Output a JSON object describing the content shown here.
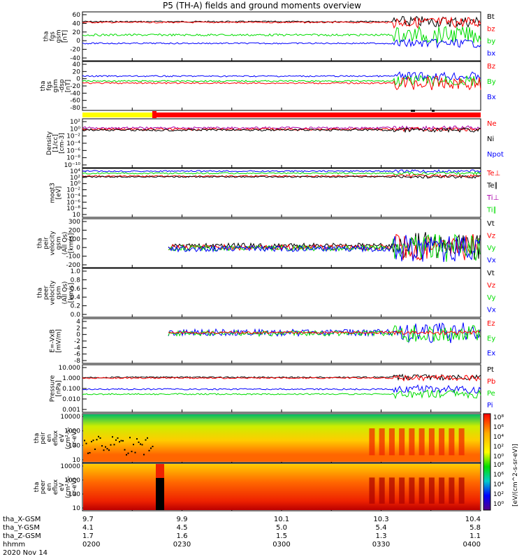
{
  "title": "P5 (TH-A) fields and ground moments overview",
  "date": "2020 Nov 14",
  "colors": {
    "black": "#000000",
    "red": "#ff0000",
    "green": "#00dd00",
    "blue": "#0000ff",
    "yellowbar": "#ffff00",
    "redbar": "#ff0000",
    "purple": "#aa00aa"
  },
  "panels": [
    {
      "ylabel": [
        "tha",
        "fgs",
        "gsm",
        "[nT]"
      ],
      "ticks": [
        "60",
        "40",
        "20",
        "0",
        "-20",
        "-40"
      ],
      "legend": [
        [
          "Bt",
          "black"
        ],
        [
          "bz",
          "red"
        ],
        [
          "by",
          "green"
        ],
        [
          "bx",
          "blue"
        ]
      ]
    },
    {
      "ylabel": [
        "tha",
        "fgs",
        "gsm",
        "-dsp",
        "[nT]"
      ],
      "ticks": [
        "40",
        "20",
        "0",
        "-20",
        "-40",
        "-60",
        "-80"
      ],
      "legend": [
        [
          "Bz",
          "red"
        ],
        [
          "By",
          "green"
        ],
        [
          "Bx",
          "blue"
        ]
      ]
    },
    {
      "ylabel": [
        "Density",
        "[1/cc]",
        "[cm-3]"
      ],
      "ticks": [
        "10²",
        "10⁰",
        "10⁻²",
        "10⁻⁴",
        "10⁻⁶",
        "10⁻⁸",
        "10⁻¹⁰"
      ],
      "legend": [
        [
          "Ne",
          "red"
        ],
        [
          "Ni",
          "black"
        ],
        [
          "Npot",
          "blue"
        ]
      ]
    },
    {
      "ylabel": [
        "moqt3",
        "[eV]"
      ],
      "ticks": [
        "10⁴",
        "10²",
        "10⁰",
        "10⁻²",
        "10⁻⁴",
        "10⁻⁶",
        "10⁻⁸",
        "10"
      ],
      "legend": [
        [
          "Te⊥",
          "red"
        ],
        [
          "Te∥",
          "black"
        ],
        [
          "Ti⊥",
          "purple"
        ],
        [
          "Ti∥",
          "green"
        ]
      ]
    },
    {
      "ylabel": [
        "tha",
        "peir",
        "velocity",
        "gsm",
        "(All Qs)",
        "[km/s]"
      ],
      "ticks": [
        "300",
        "200",
        "100",
        "0",
        "-100",
        "-200"
      ],
      "legend": [
        [
          "Vt",
          "black"
        ],
        [
          "Vz",
          "red"
        ],
        [
          "Vy",
          "green"
        ],
        [
          "Vx",
          "blue"
        ]
      ]
    },
    {
      "ylabel": [
        "tha",
        "peer",
        "velocity",
        "gsm",
        "(All Qs)",
        "[km/s]"
      ],
      "ticks": [
        "1.0",
        "0.8",
        "0.6",
        "0.4",
        "0.2",
        "0.0"
      ],
      "legend": [
        [
          "Vt",
          "black"
        ],
        [
          "Vz",
          "red"
        ],
        [
          "Vy",
          "green"
        ],
        [
          "Vx",
          "blue"
        ]
      ]
    },
    {
      "ylabel": [
        "E=-VxB",
        "[mV/m]"
      ],
      "ticks": [
        "4",
        "2",
        "0",
        "-2",
        "-4",
        "-6",
        "-8"
      ],
      "legend": [
        [
          "Ez",
          "red"
        ],
        [
          "Ey",
          "green"
        ],
        [
          "Ex",
          "blue"
        ]
      ]
    },
    {
      "ylabel": [
        "Pressure",
        "[nPa]"
      ],
      "ticks": [
        "10.000",
        "1.000",
        "0.100",
        "0.010",
        "0.001"
      ],
      "legend": [
        [
          "Pt",
          "black"
        ],
        [
          "Pb",
          "red"
        ],
        [
          "Pe",
          "green"
        ],
        [
          "Pi",
          "blue"
        ]
      ]
    },
    {
      "ylabel": [
        "tha",
        "peir",
        "en",
        "eflux",
        "eV",
        "(cm²-s-",
        "sr-eV)"
      ],
      "ticks": [
        "10000",
        "1000",
        "100",
        "10"
      ]
    },
    {
      "ylabel": [
        "tha",
        "peer",
        "en",
        "eflux",
        "eV",
        "(cm²-s-",
        "sr-eV)"
      ],
      "ticks": [
        "10000",
        "1000",
        "100",
        "10"
      ]
    }
  ],
  "colorbar": {
    "ticks": [
      "10⁸",
      "10⁶",
      "10⁴",
      "10²",
      "10⁰"
    ],
    "label": "[eV/(cm^2-s-sr-eV)]"
  },
  "colorbar2": {
    "ticks": [
      "10⁸",
      "10⁶",
      "10⁴",
      "10²",
      "10⁰"
    ]
  },
  "xaxis": {
    "rows": [
      "tha_X-GSM",
      "tha_Y-GSM",
      "tha_Z-GSM",
      "hhmm"
    ],
    "cols": [
      {
        "t": "0200",
        "X": "9.7",
        "Y": "4.1",
        "Z": "1.7"
      },
      {
        "t": "0230",
        "X": "9.9",
        "Y": "4.5",
        "Z": "1.6"
      },
      {
        "t": "0300",
        "X": "10.1",
        "Y": "5.0",
        "Z": "1.5"
      },
      {
        "t": "0330",
        "X": "10.3",
        "Y": "5.4",
        "Z": "1.3"
      },
      {
        "t": "0400",
        "X": "10.4",
        "Y": "5.8",
        "Z": "1.1"
      }
    ]
  },
  "chart_data": {
    "type": "line",
    "x_range": [
      "0200",
      "0400"
    ],
    "series_summary": [
      {
        "panel": "fgs gsm",
        "name": "Bt",
        "approx": 48
      },
      {
        "panel": "fgs gsm",
        "name": "bz",
        "approx": 46
      },
      {
        "panel": "fgs gsm",
        "name": "by",
        "approx": 15
      },
      {
        "panel": "fgs gsm",
        "name": "bx",
        "approx": -2
      }
    ]
  }
}
